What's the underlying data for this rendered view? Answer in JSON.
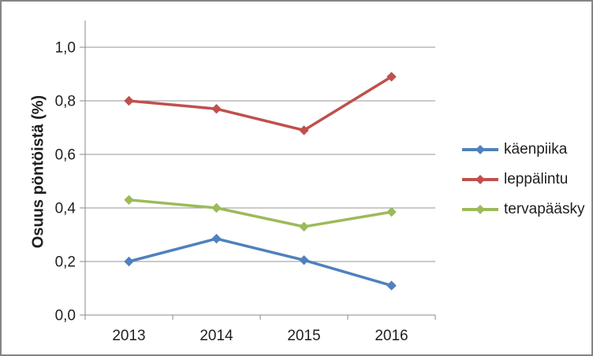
{
  "chart_data": {
    "type": "line",
    "title": "",
    "xlabel": "",
    "ylabel": "Osuus pöntöistä (%)",
    "categories": [
      "2013",
      "2014",
      "2015",
      "2016"
    ],
    "series": [
      {
        "name": "käenpiika",
        "color": "#4F81BD",
        "values": [
          0.2,
          0.285,
          0.205,
          0.11
        ]
      },
      {
        "name": "leppälintu",
        "color": "#C0504D",
        "values": [
          0.8,
          0.77,
          0.69,
          0.89
        ]
      },
      {
        "name": "tervapääsky",
        "color": "#9BBB59",
        "values": [
          0.43,
          0.4,
          0.33,
          0.385
        ]
      }
    ],
    "y_axis": {
      "min": 0,
      "max": 1.1,
      "major_unit": 0.2,
      "tick_values": [
        0,
        0.2,
        0.4,
        0.6,
        0.8,
        1.0
      ],
      "tick_labels": [
        "0,0",
        "0,2",
        "0,4",
        "0,6",
        "0,8",
        "1,0"
      ]
    },
    "legend_position": "right",
    "grid": true,
    "marker": "diamond",
    "colors": {
      "gridline": "#969696",
      "axis": "#8a8a8a",
      "text": "#1f1f1f",
      "frame_border": "#858585"
    }
  }
}
